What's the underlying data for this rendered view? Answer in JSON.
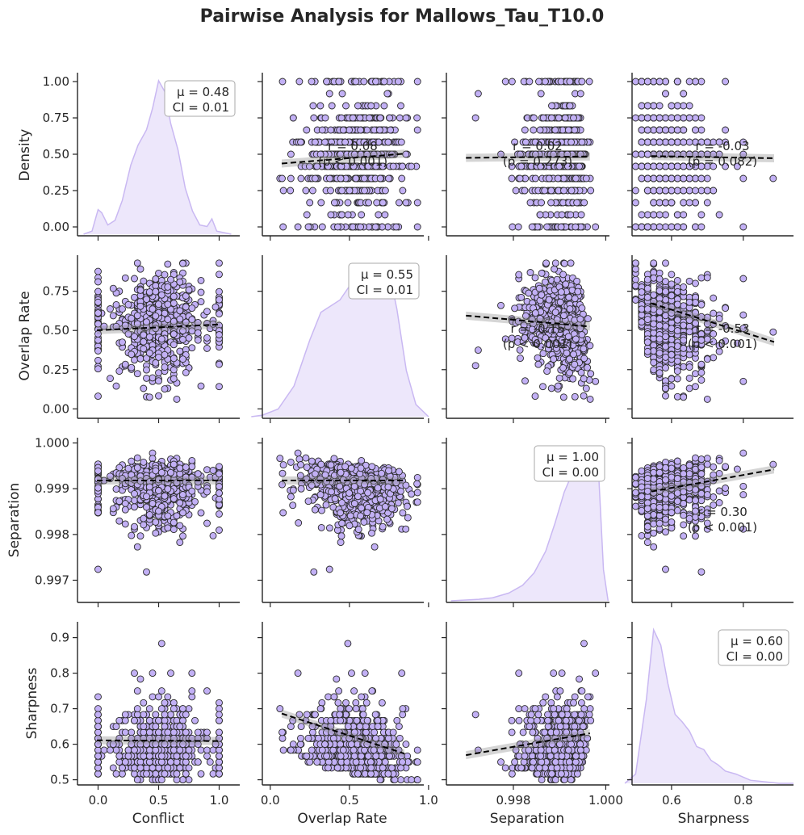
{
  "chart_data": {
    "type": "scatter",
    "title": "Pairwise Analysis for Mallows_Tau_T10.0",
    "variables": [
      "Density",
      "Overlap Rate",
      "Separation",
      "Sharpness"
    ],
    "x_labels": [
      "Conflict",
      "Overlap Rate",
      "Separation",
      "Sharpness"
    ],
    "colors": {
      "point": "#c2b0f5",
      "edge": "#2b2b2b",
      "kde": "#c9b8f2",
      "kde_fill": "#ede7fb",
      "fit": "#000000"
    },
    "ranges": {
      "Density": [
        -0.05,
        1.05
      ],
      "Overlap Rate": [
        -0.05,
        0.97
      ],
      "Separation": [
        0.99655,
        1.00008
      ],
      "Sharpness": [
        0.49,
        0.94
      ],
      "Conflict": [
        -0.17,
        1.17
      ]
    },
    "ticks": {
      "Density": {
        "values": [
          0,
          0.25,
          0.5,
          0.75,
          1.0
        ],
        "labels": [
          "0.00",
          "0.25",
          "0.50",
          "0.75",
          "1.00"
        ]
      },
      "Overlap Rate": {
        "values": [
          0,
          0.25,
          0.5,
          0.75
        ],
        "labels": [
          "0.00",
          "0.25",
          "0.50",
          "0.75"
        ]
      },
      "Separation": {
        "values": [
          0.997,
          0.998,
          0.999,
          1.0
        ],
        "labels": [
          "0.997",
          "0.998",
          "0.999",
          "1.000"
        ]
      },
      "Sharpness": {
        "values": [
          0.5,
          0.6,
          0.7,
          0.8,
          0.9
        ],
        "labels": [
          "0.5",
          "0.6",
          "0.7",
          "0.8",
          "0.9"
        ]
      },
      "Conflict_x": {
        "values": [
          0,
          0.5,
          1.0
        ],
        "labels": [
          "0.0",
          "0.5",
          "1.0"
        ]
      },
      "Overlap_x": {
        "values": [
          0,
          0.5,
          1.0
        ],
        "labels": [
          "0.0",
          "0.5",
          "1.0"
        ]
      },
      "Separation_x": {
        "values": [
          0.998,
          1.0
        ],
        "labels": [
          "0.998",
          "1.000"
        ]
      },
      "Sharpness_x": {
        "values": [
          0.6,
          0.8
        ],
        "labels": [
          "0.6",
          "0.8"
        ]
      }
    },
    "diagonal": [
      {
        "variable": "Density",
        "mu": "μ = 0.48",
        "ci": "CI = 0.01",
        "kde": [
          [
            -0.12,
            0
          ],
          [
            -0.05,
            0.02
          ],
          [
            0,
            0.16
          ],
          [
            0.03,
            0.14
          ],
          [
            0.08,
            0.06
          ],
          [
            0.14,
            0.09
          ],
          [
            0.2,
            0.22
          ],
          [
            0.27,
            0.45
          ],
          [
            0.33,
            0.58
          ],
          [
            0.4,
            0.68
          ],
          [
            0.45,
            0.82
          ],
          [
            0.5,
            1.0
          ],
          [
            0.55,
            0.93
          ],
          [
            0.6,
            0.72
          ],
          [
            0.66,
            0.55
          ],
          [
            0.72,
            0.3
          ],
          [
            0.78,
            0.15
          ],
          [
            0.84,
            0.06
          ],
          [
            0.9,
            0.05
          ],
          [
            0.94,
            0.1
          ],
          [
            0.98,
            0.02
          ],
          [
            1.1,
            0
          ]
        ]
      },
      {
        "variable": "Overlap Rate",
        "mu": "μ = 0.55",
        "ci": "CI = 0.01",
        "kde": [
          [
            -0.12,
            0
          ],
          [
            -0.05,
            0.01
          ],
          [
            0.05,
            0.05
          ],
          [
            0.15,
            0.2
          ],
          [
            0.25,
            0.5
          ],
          [
            0.32,
            0.68
          ],
          [
            0.38,
            0.72
          ],
          [
            0.44,
            0.76
          ],
          [
            0.5,
            0.85
          ],
          [
            0.55,
            0.95
          ],
          [
            0.6,
            0.98
          ],
          [
            0.65,
            0.97
          ],
          [
            0.7,
            0.98
          ],
          [
            0.75,
            0.95
          ],
          [
            0.8,
            0.7
          ],
          [
            0.86,
            0.3
          ],
          [
            0.92,
            0.08
          ],
          [
            1.0,
            0
          ]
        ]
      },
      {
        "variable": "Separation",
        "mu": "μ = 1.00",
        "ci": "CI = 0.00",
        "kde": [
          [
            0.99665,
            0
          ],
          [
            0.99725,
            0.01
          ],
          [
            0.99755,
            0.02
          ],
          [
            0.9979,
            0.05
          ],
          [
            0.9982,
            0.1
          ],
          [
            0.99845,
            0.18
          ],
          [
            0.9987,
            0.32
          ],
          [
            0.9989,
            0.5
          ],
          [
            0.9991,
            0.7
          ],
          [
            0.9993,
            0.84
          ],
          [
            0.9995,
            0.92
          ],
          [
            0.9996,
            0.96
          ],
          [
            0.99972,
            0.98
          ],
          [
            0.99985,
            0.8
          ],
          [
            0.99995,
            0.2
          ],
          [
            1.00005,
            0
          ]
        ]
      },
      {
        "variable": "Sharpness",
        "mu": "μ = 0.60",
        "ci": "CI = 0.00",
        "kde": [
          [
            0.47,
            0
          ],
          [
            0.5,
            0.06
          ],
          [
            0.53,
            0.55
          ],
          [
            0.55,
            1.0
          ],
          [
            0.57,
            0.9
          ],
          [
            0.59,
            0.65
          ],
          [
            0.61,
            0.45
          ],
          [
            0.63,
            0.4
          ],
          [
            0.65,
            0.34
          ],
          [
            0.67,
            0.24
          ],
          [
            0.69,
            0.22
          ],
          [
            0.71,
            0.15
          ],
          [
            0.73,
            0.12
          ],
          [
            0.75,
            0.08
          ],
          [
            0.78,
            0.06
          ],
          [
            0.82,
            0.02
          ],
          [
            0.9,
            0
          ],
          [
            0.94,
            0
          ]
        ]
      }
    ],
    "panels": [
      {
        "row": 0,
        "col": 1,
        "r_text": "r = 0.08",
        "p_text": "(p < 0.001)",
        "fit": [
          0.47,
          0.135
        ]
      },
      {
        "row": 0,
        "col": 2,
        "r_text": "r = 0.02",
        "p_text": "(p = 0.273)",
        "fit": [
          0.48,
          0.02
        ]
      },
      {
        "row": 0,
        "col": 3,
        "r_text": "r = -0.03",
        "p_text": "(p = 0.082)",
        "fit": [
          0.48,
          -0.03
        ]
      },
      {
        "row": 1,
        "col": 0,
        "r_text": "",
        "p_text": "",
        "fit": [
          0.52,
          0.08
        ]
      },
      {
        "row": 1,
        "col": 2,
        "r_text": "r = -0.15",
        "p_text": "(p < 0.001)",
        "fit": [
          0.56,
          -0.15
        ]
      },
      {
        "row": 1,
        "col": 3,
        "r_text": "r = -0.53",
        "p_text": "(p < 0.001)",
        "fit": [
          0.55,
          -0.53
        ]
      },
      {
        "row": 2,
        "col": 0,
        "r_text": "",
        "p_text": "",
        "fit": [
          0.99918,
          0.0002
        ]
      },
      {
        "row": 2,
        "col": 1,
        "r_text": "",
        "p_text": "",
        "fit": [
          0.99918,
          -0.0006
        ]
      },
      {
        "row": 2,
        "col": 3,
        "r_text": "r = 0.30",
        "p_text": "(p < 0.001)",
        "fit": [
          0.99918,
          0.3
        ]
      },
      {
        "row": 3,
        "col": 0,
        "r_text": "",
        "p_text": "",
        "fit": [
          0.61,
          -0.01
        ]
      },
      {
        "row": 3,
        "col": 1,
        "r_text": "",
        "p_text": "",
        "fit": [
          0.63,
          -0.55
        ]
      },
      {
        "row": 3,
        "col": 2,
        "r_text": "",
        "p_text": "",
        "fit": [
          0.6,
          0.3
        ]
      }
    ]
  }
}
